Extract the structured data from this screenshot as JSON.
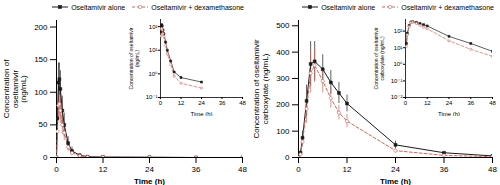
{
  "chart_data": [
    {
      "type": "line",
      "xlabel": "Time (h)",
      "ylabel": "Concentration of\noseltamivir\n(ng/mL)",
      "xlim": [
        0,
        48
      ],
      "ylim": [
        0,
        210
      ],
      "xticks": [
        0,
        12,
        24,
        36,
        48
      ],
      "yticks": [
        0,
        50,
        100,
        150,
        200
      ],
      "legend": "upper right",
      "series": [
        {
          "name": "Oseltamivir alone",
          "color": "#1a1a1a",
          "marker": "square",
          "line_style": "solid",
          "x": [
            0,
            0.25,
            0.5,
            0.75,
            1.0,
            1.5,
            2.0,
            3.0,
            4.0,
            6.0,
            8.0,
            12.0,
            24.0,
            36.0,
            48.0
          ],
          "values": [
            0,
            60,
            115,
            120,
            105,
            72,
            50,
            22,
            10,
            3.5,
            1.2,
            0.7,
            0.45,
            0.0,
            0.0
          ],
          "error_bars": {
            "x": [
              0.25,
              0.5,
              0.75,
              1.0,
              1.5,
              2.0,
              3.0,
              4.0,
              6.0
            ],
            "y": [
              60,
              115,
              120,
              105,
              72,
              50,
              22,
              10,
              3.5
            ],
            "error": [
              15,
              30,
              25,
              28,
              22,
              18,
              10,
              6,
              2
            ]
          }
        },
        {
          "name": "Oseltamivir + dexamethasone",
          "color": "#c8695f",
          "marker": "circle",
          "line_style": "dashed",
          "x": [
            0,
            0.25,
            0.5,
            0.75,
            1.0,
            1.5,
            2.0,
            3.0,
            4.0,
            6.0,
            8.0,
            12.0,
            24.0,
            36.0,
            48.0
          ],
          "values": [
            0,
            40,
            80,
            82,
            72,
            50,
            38,
            16,
            7,
            2.5,
            0.8,
            0.4,
            0.25,
            0.0,
            0.0
          ],
          "error_bars": {
            "x": [
              0.25,
              0.5,
              0.75,
              1.0,
              1.5,
              2.0,
              3.0,
              4.0,
              6.0
            ],
            "y": [
              40,
              80,
              82,
              72,
              50,
              38,
              16,
              7,
              2.5
            ],
            "error": [
              12,
              22,
              20,
              20,
              15,
              12,
              7,
              4,
              1.5
            ]
          }
        }
      ],
      "inset": {
        "type": "line",
        "xlabel": "Time (h)",
        "ylabel": "Concentration of oseltamivir\n(ng/mL)",
        "log": "y",
        "xlim": [
          0,
          48
        ],
        "ylim": [
          0.1,
          200
        ],
        "xticks": [
          0,
          12,
          24,
          36,
          48
        ],
        "yticks": [
          {
            "value": 0.1,
            "label": "10⁻¹"
          },
          {
            "value": 1,
            "label": "10⁰"
          },
          {
            "value": 10,
            "label": "10¹"
          },
          {
            "value": 100,
            "label": "10²"
          }
        ]
      }
    },
    {
      "type": "line",
      "xlabel": "Time (h)",
      "ylabel": "Concentration of oseltamivir\ncarboxylate (ng/mL)",
      "xlim": [
        0,
        48
      ],
      "ylim": [
        0,
        520
      ],
      "xticks": [
        0,
        12,
        24,
        36,
        48
      ],
      "yticks": [
        0,
        100,
        200,
        300,
        400,
        500
      ],
      "legend": "upper right",
      "series": [
        {
          "name": "Oseltamivir alone",
          "color": "#1a1a1a",
          "marker": "square",
          "line_style": "solid",
          "x": [
            0,
            0.5,
            1.0,
            2.0,
            3.0,
            4.0,
            6.0,
            8.0,
            10.0,
            12.0,
            24.0,
            36.0,
            48.0
          ],
          "values": [
            0,
            18,
            75,
            215,
            355,
            365,
            335,
            285,
            245,
            205,
            48,
            18,
            6
          ],
          "error_bars": {
            "x": [
              0.5,
              1.0,
              2.0,
              3.0,
              4.0,
              6.0,
              8.0,
              10.0,
              12.0,
              24.0
            ],
            "y": [
              18,
              75,
              215,
              355,
              365,
              335,
              285,
              245,
              205,
              48
            ],
            "error": [
              8,
              25,
              60,
              85,
              75,
              55,
              45,
              40,
              32,
              14
            ]
          }
        },
        {
          "name": "Oseltamivir + dexamethasone",
          "color": "#c8695f",
          "marker": "circle",
          "line_style": "dashed",
          "x": [
            0,
            0.5,
            1.0,
            2.0,
            3.0,
            4.0,
            6.0,
            8.0,
            10.0,
            12.0,
            24.0,
            36.0,
            48.0
          ],
          "values": [
            0,
            12,
            60,
            185,
            320,
            350,
            290,
            225,
            170,
            138,
            26,
            8,
            3
          ],
          "error_bars": {
            "x": [
              0.5,
              1.0,
              2.0,
              3.0,
              4.0,
              6.0,
              8.0,
              10.0,
              12.0,
              24.0
            ],
            "y": [
              12,
              60,
              185,
              320,
              350,
              290,
              225,
              170,
              138,
              26
            ],
            "error": [
              5,
              20,
              55,
              75,
              65,
              45,
              38,
              28,
              25,
              10
            ]
          }
        }
      ],
      "inset": {
        "type": "line",
        "xlabel": "Time (h)",
        "ylabel": "Concentration of oseltamivir\ncarboxylate (ng/mL)",
        "log": "y",
        "xlim": [
          0,
          48
        ],
        "ylim": [
          0.01,
          500
        ],
        "xticks": [
          0,
          12,
          24,
          36,
          48
        ],
        "yticks": [
          {
            "value": 0.01,
            "label": "10⁻²"
          },
          {
            "value": 0.1,
            "label": "10⁻¹"
          },
          {
            "value": 1,
            "label": "10⁰"
          },
          {
            "value": 10,
            "label": "10¹"
          },
          {
            "value": 100,
            "label": "10²"
          }
        ]
      }
    }
  ]
}
